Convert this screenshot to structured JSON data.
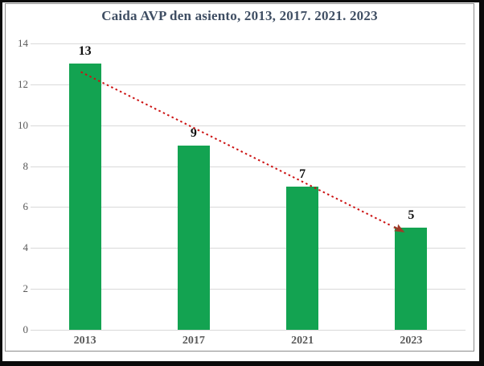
{
  "chart_data": {
    "type": "bar",
    "title": "Caida AVP den asiento, 2013, 2017. 2021. 2023",
    "categories": [
      "2013",
      "2017",
      "2021",
      "2023"
    ],
    "values": [
      13,
      9,
      7,
      5
    ],
    "data_labels": [
      "13",
      "9",
      "7",
      "5"
    ],
    "xlabel": "",
    "ylabel": "",
    "ylim": [
      0,
      14
    ],
    "y_ticks": [
      0,
      2,
      4,
      6,
      8,
      10,
      12,
      14
    ],
    "grid": "horizontal",
    "legend": "none",
    "bar_color": "#13a351",
    "title_color": "#3f4e63",
    "axis_label_color": "#595959",
    "data_label_color": "#111111",
    "gridline_color": "#d9d9d9",
    "chart_border_color": "#8c8c8c",
    "outer_border_color": "#0a0a0a",
    "trendline": {
      "style": "dotted",
      "color": "#cc1212",
      "arrowhead_color": "#9e3b28",
      "from_category": "2013",
      "from_value": 13,
      "to_category": "2023",
      "to_value": 5,
      "description": "red dotted line descending from top of 2013 bar to an arrowhead at top of 2023 bar"
    }
  }
}
